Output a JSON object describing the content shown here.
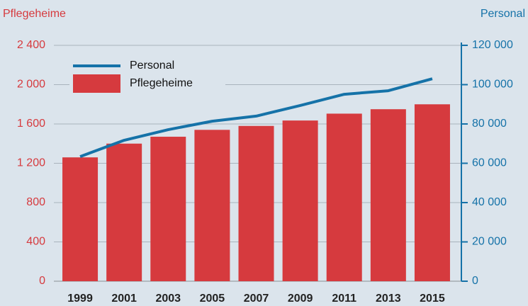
{
  "chart_data": {
    "type": "bar",
    "ylabel": "Pflegeheime",
    "y2label": "Personal",
    "categories": [
      "1999",
      "2001",
      "2003",
      "2005",
      "2007",
      "2009",
      "2011",
      "2013",
      "2015"
    ],
    "series": [
      {
        "name": "Personal",
        "type": "line",
        "axis": "y2",
        "color": "#1572a8",
        "values": [
          63400,
          71700,
          77100,
          81400,
          84000,
          89400,
          95100,
          96900,
          103000
        ]
      },
      {
        "name": "Pflegeheime",
        "type": "bar",
        "color": "#d63a3e",
        "values": [
          1260,
          1400,
          1470,
          1540,
          1580,
          1635,
          1705,
          1750,
          1800
        ]
      }
    ],
    "ylim": [
      0,
      2400
    ],
    "yticks": [
      0,
      {
        "value": 400,
        "label": "400"
      },
      {
        "value": 800,
        "label": "800"
      },
      {
        "value": 1200,
        "label": "1 200"
      },
      {
        "value": 1600,
        "label": "1 600"
      },
      {
        "value": 2000,
        "label": "2 000"
      },
      {
        "value": 2400,
        "label": "2 400"
      }
    ],
    "y2lim": [
      0,
      120000
    ],
    "y2ticks": [
      0,
      {
        "value": 20000,
        "label": "20 000"
      },
      {
        "value": 40000,
        "label": "40 000"
      },
      {
        "value": 60000,
        "label": "60 000"
      },
      {
        "value": 80000,
        "label": "80 000"
      },
      {
        "value": 100000,
        "label": "100 000"
      },
      {
        "value": 120000,
        "label": "120 000"
      }
    ],
    "grid": true,
    "legend": "upper left"
  }
}
